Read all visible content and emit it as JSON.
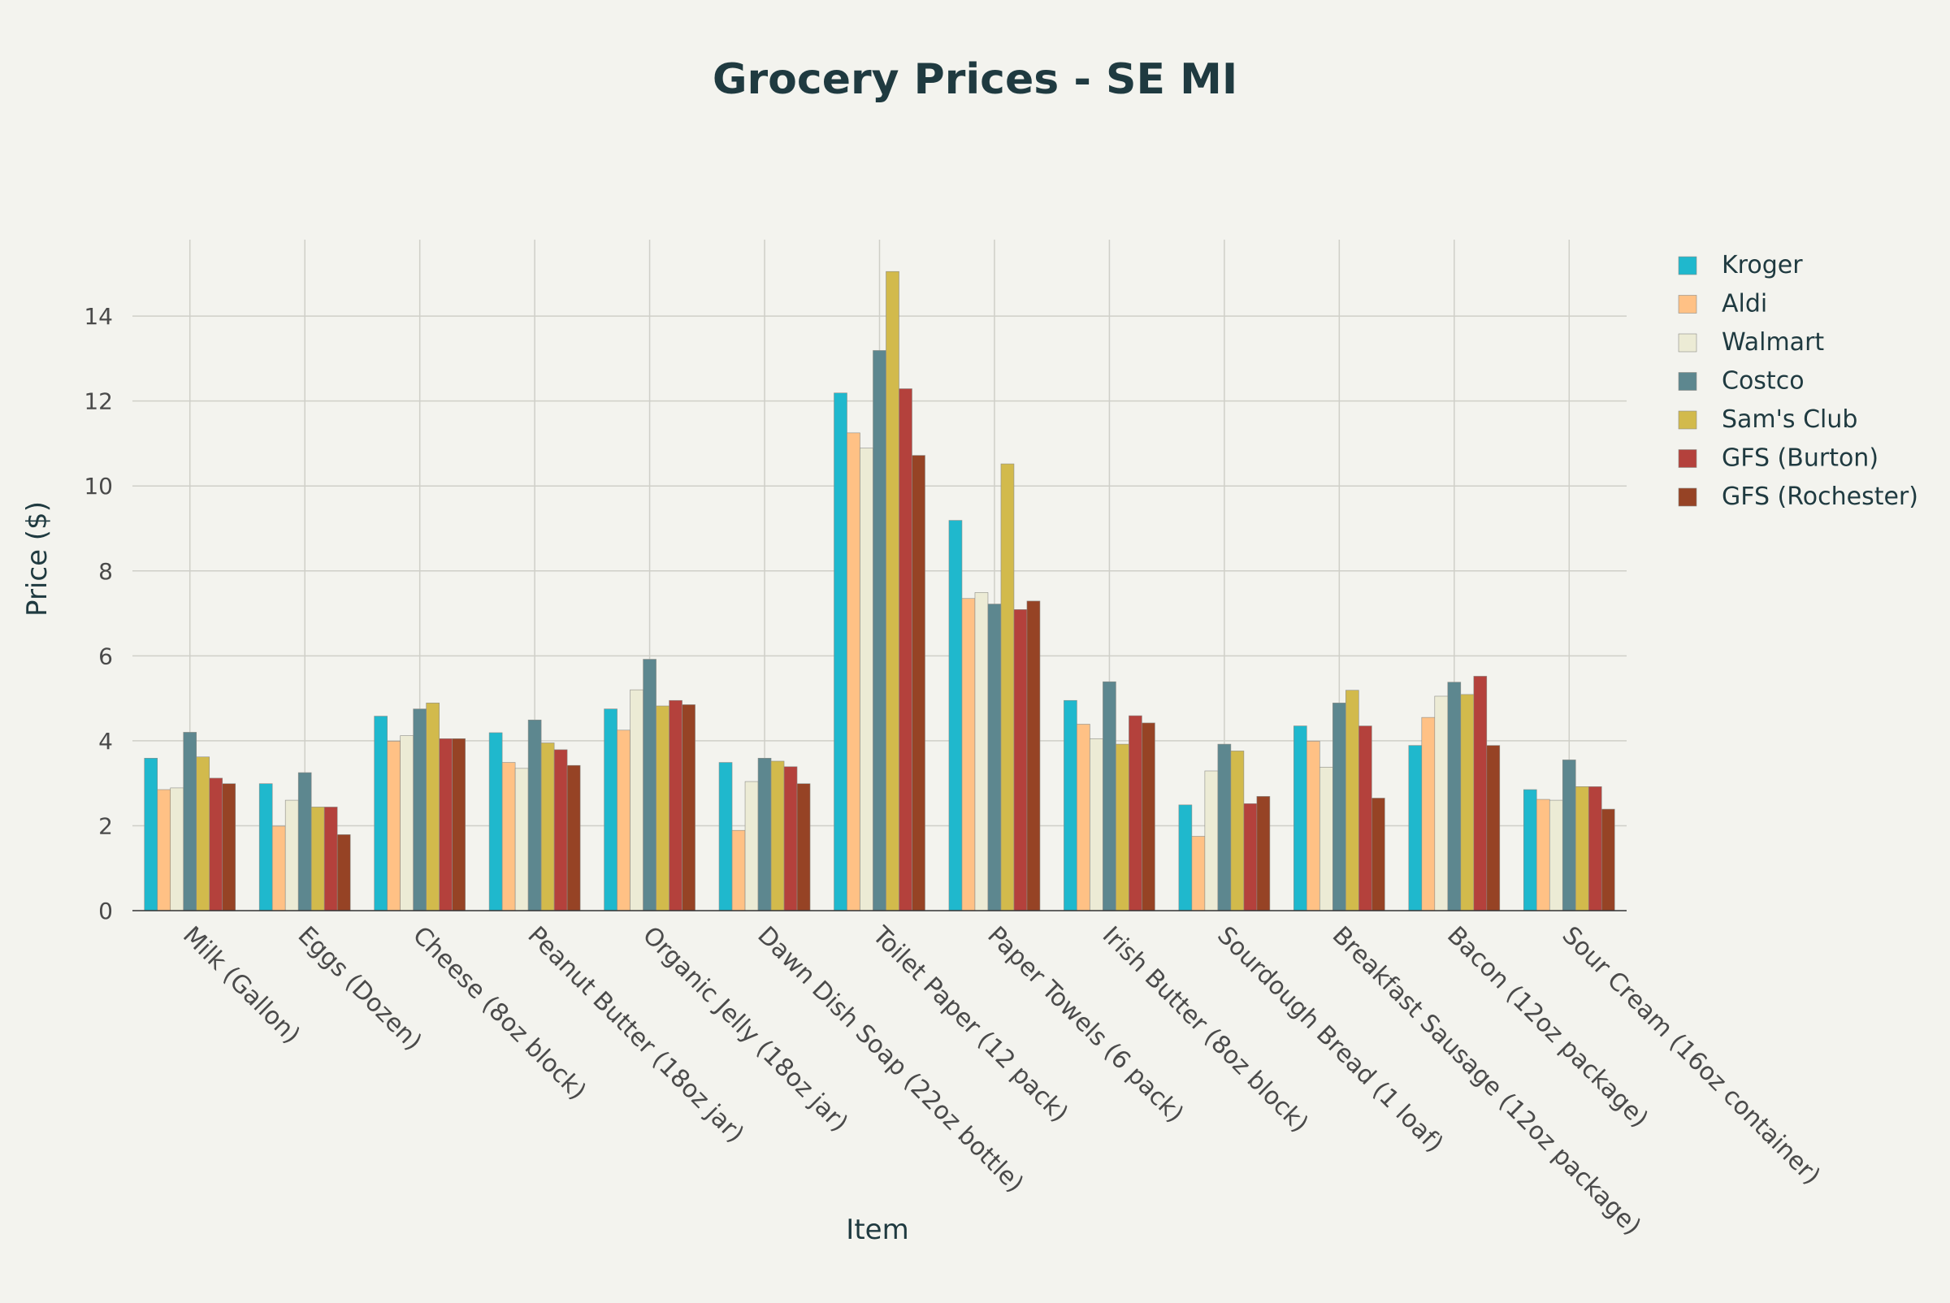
{
  "chart_data": {
    "type": "bar",
    "title": "Grocery Prices - SE MI",
    "xlabel": "Item",
    "ylabel": "Price ($)",
    "ylim": [
      0,
      15.8
    ],
    "yticks": [
      0,
      2,
      4,
      6,
      8,
      10,
      12,
      14
    ],
    "grid": true,
    "legend_position": "top-right",
    "categories": [
      "Milk (Gallon)",
      "Eggs (Dozen)",
      "Cheese (8oz block)",
      "Peanut Butter (18oz jar)",
      "Organic Jelly (18oz jar)",
      "Dawn Dish Soap (22oz bottle)",
      "Toilet Paper (12 pack)",
      "Paper Towels (6 pack)",
      "Irish Butter (8oz block)",
      "Sourdough Bread (1 loaf)",
      "Breakfast Sausage (12oz package)",
      "Bacon (12oz package)",
      "Sour Cream (16oz container)"
    ],
    "series": [
      {
        "name": "Kroger",
        "color": "#1fb8cd",
        "values": [
          3.59,
          2.99,
          4.58,
          4.19,
          4.75,
          3.49,
          12.19,
          9.19,
          4.95,
          2.49,
          4.35,
          3.89,
          2.85
        ]
      },
      {
        "name": "Aldi",
        "color": "#ffc185",
        "values": [
          2.85,
          1.99,
          3.99,
          3.49,
          4.25,
          1.89,
          11.25,
          7.35,
          4.39,
          1.75,
          3.99,
          4.55,
          2.62
        ]
      },
      {
        "name": "Walmart",
        "color": "#ecebd5",
        "values": [
          2.89,
          2.6,
          4.12,
          3.35,
          5.2,
          3.04,
          10.89,
          7.49,
          4.05,
          3.29,
          3.38,
          5.05,
          2.6
        ]
      },
      {
        "name": "Costco",
        "color": "#5d878f",
        "values": [
          4.2,
          3.25,
          4.75,
          4.49,
          5.92,
          3.59,
          13.19,
          7.22,
          5.39,
          3.92,
          4.89,
          5.38,
          3.55
        ]
      },
      {
        "name": "Sam's Club",
        "color": "#d2ba4c",
        "values": [
          3.62,
          2.44,
          4.89,
          3.95,
          4.82,
          3.52,
          15.05,
          10.52,
          3.92,
          3.76,
          5.19,
          5.09,
          2.92
        ]
      },
      {
        "name": "GFS (Burton)",
        "color": "#b4413c",
        "values": [
          3.12,
          2.44,
          4.05,
          3.79,
          4.95,
          3.39,
          12.29,
          7.09,
          4.59,
          2.52,
          4.35,
          5.52,
          2.92
        ]
      },
      {
        "name": "GFS (Rochester)",
        "color": "#964325",
        "values": [
          2.99,
          1.79,
          4.05,
          3.42,
          4.85,
          2.99,
          10.72,
          7.29,
          4.42,
          2.69,
          2.65,
          3.89,
          2.39
        ]
      }
    ]
  }
}
